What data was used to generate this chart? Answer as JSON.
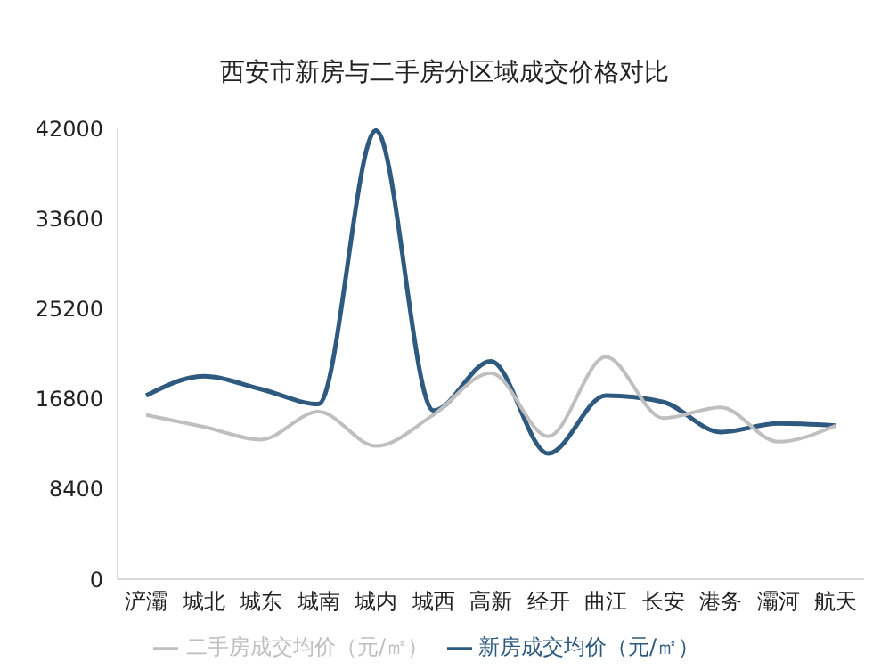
{
  "chart_data": {
    "type": "line",
    "title": "西安市新房与二手房分区域成交价格对比",
    "categories": [
      "浐灞",
      "城北",
      "城东",
      "城南",
      "城内",
      "城西",
      "高新",
      "经开",
      "曲江",
      "长安",
      "港务",
      "灞河",
      "航天"
    ],
    "series": [
      {
        "name": "新房成交均价（元/㎡）",
        "color": "#2e5a80",
        "values": [
          17100,
          18900,
          17700,
          16300,
          41800,
          15700,
          20300,
          11700,
          17100,
          16500,
          13700,
          14500,
          14300
        ]
      },
      {
        "name": "二手房成交均价（元/㎡）",
        "color": "#bfbfbf",
        "values": [
          15300,
          14200,
          13000,
          15600,
          12400,
          15300,
          19200,
          13300,
          20700,
          15000,
          16000,
          12800,
          14300
        ]
      }
    ],
    "ylim": [
      0,
      42000
    ],
    "yticks": [
      0,
      8400,
      16800,
      25200,
      33600,
      42000
    ],
    "grid": false,
    "legend": "bottom",
    "marker": "none",
    "line_style": "solid"
  }
}
